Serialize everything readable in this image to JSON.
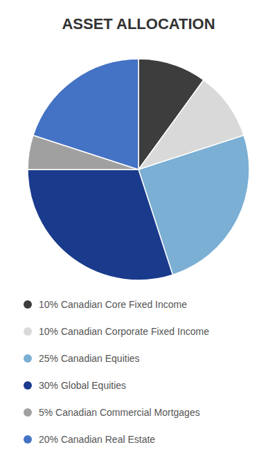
{
  "chart_data": {
    "type": "pie",
    "title": "ASSET ALLOCATION",
    "categories": [
      "10% Canadian Core Fixed Income",
      "10% Canadian Corporate Fixed Income",
      "25% Canadian Equities",
      "30% Global Equities",
      "5% Canadian Commercial Mortgages",
      "20% Canadian Real Estate"
    ],
    "values": [
      10,
      10,
      25,
      30,
      5,
      20
    ],
    "colors": [
      "#3d3d3d",
      "#d9d9d9",
      "#7bafd4",
      "#1a3a8c",
      "#a0a0a0",
      "#4472c4"
    ],
    "legend": "bottom"
  }
}
